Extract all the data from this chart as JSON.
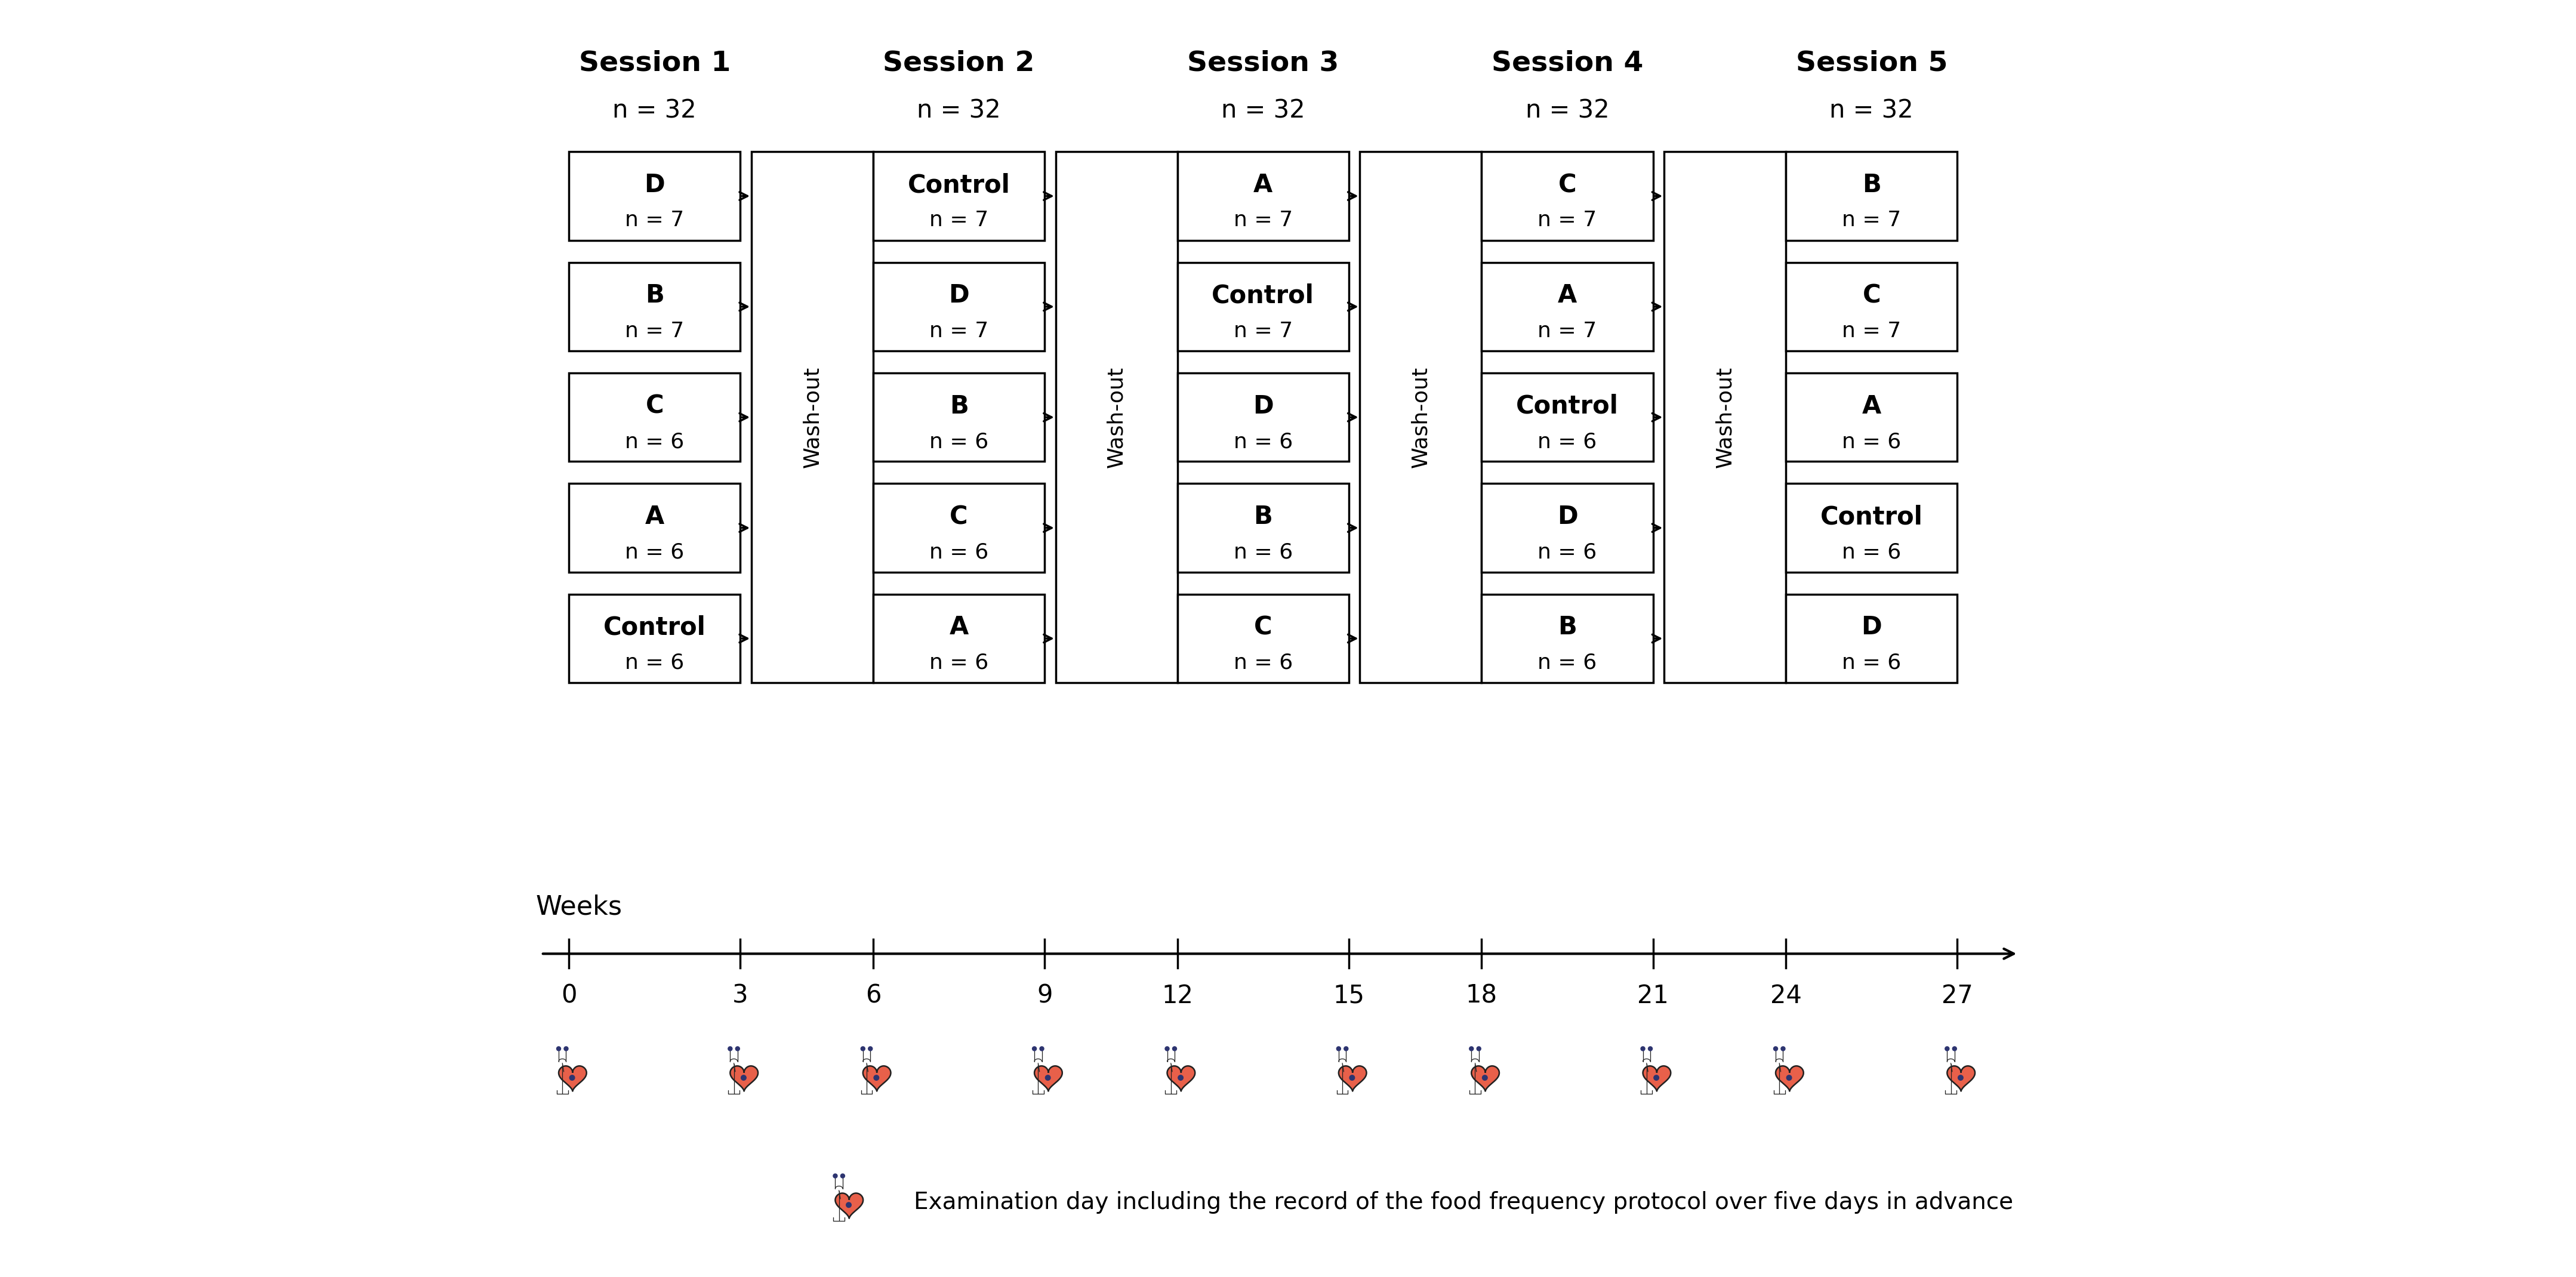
{
  "sessions": [
    {
      "name": "Session 1",
      "n": 32,
      "groups": [
        {
          "label": "D",
          "n": 7
        },
        {
          "label": "B",
          "n": 7
        },
        {
          "label": "C",
          "n": 6
        },
        {
          "label": "A",
          "n": 6
        },
        {
          "label": "Control",
          "n": 6
        }
      ]
    },
    {
      "name": "Session 2",
      "n": 32,
      "groups": [
        {
          "label": "Control",
          "n": 7
        },
        {
          "label": "D",
          "n": 7
        },
        {
          "label": "B",
          "n": 6
        },
        {
          "label": "C",
          "n": 6
        },
        {
          "label": "A",
          "n": 6
        }
      ]
    },
    {
      "name": "Session 3",
      "n": 32,
      "groups": [
        {
          "label": "A",
          "n": 7
        },
        {
          "label": "Control",
          "n": 7
        },
        {
          "label": "D",
          "n": 6
        },
        {
          "label": "B",
          "n": 6
        },
        {
          "label": "C",
          "n": 6
        }
      ]
    },
    {
      "name": "Session 4",
      "n": 32,
      "groups": [
        {
          "label": "C",
          "n": 7
        },
        {
          "label": "A",
          "n": 7
        },
        {
          "label": "Control",
          "n": 6
        },
        {
          "label": "D",
          "n": 6
        },
        {
          "label": "B",
          "n": 6
        }
      ]
    },
    {
      "name": "Session 5",
      "n": 32,
      "groups": [
        {
          "label": "B",
          "n": 7
        },
        {
          "label": "C",
          "n": 7
        },
        {
          "label": "A",
          "n": 6
        },
        {
          "label": "Control",
          "n": 6
        },
        {
          "label": "D",
          "n": 6
        }
      ]
    }
  ],
  "week_ticks": [
    0,
    3,
    6,
    9,
    12,
    15,
    18,
    21,
    24,
    27
  ],
  "background_color": "#ffffff",
  "box_edge_color": "#000000",
  "text_color": "#000000",
  "heart_color": "#E8604A",
  "heart_outline": "#222222",
  "steth_color": "#222222",
  "dot_color": "#2d3470",
  "legend_text": "Examination day including the record of the food frequency protocol over five days in advance"
}
